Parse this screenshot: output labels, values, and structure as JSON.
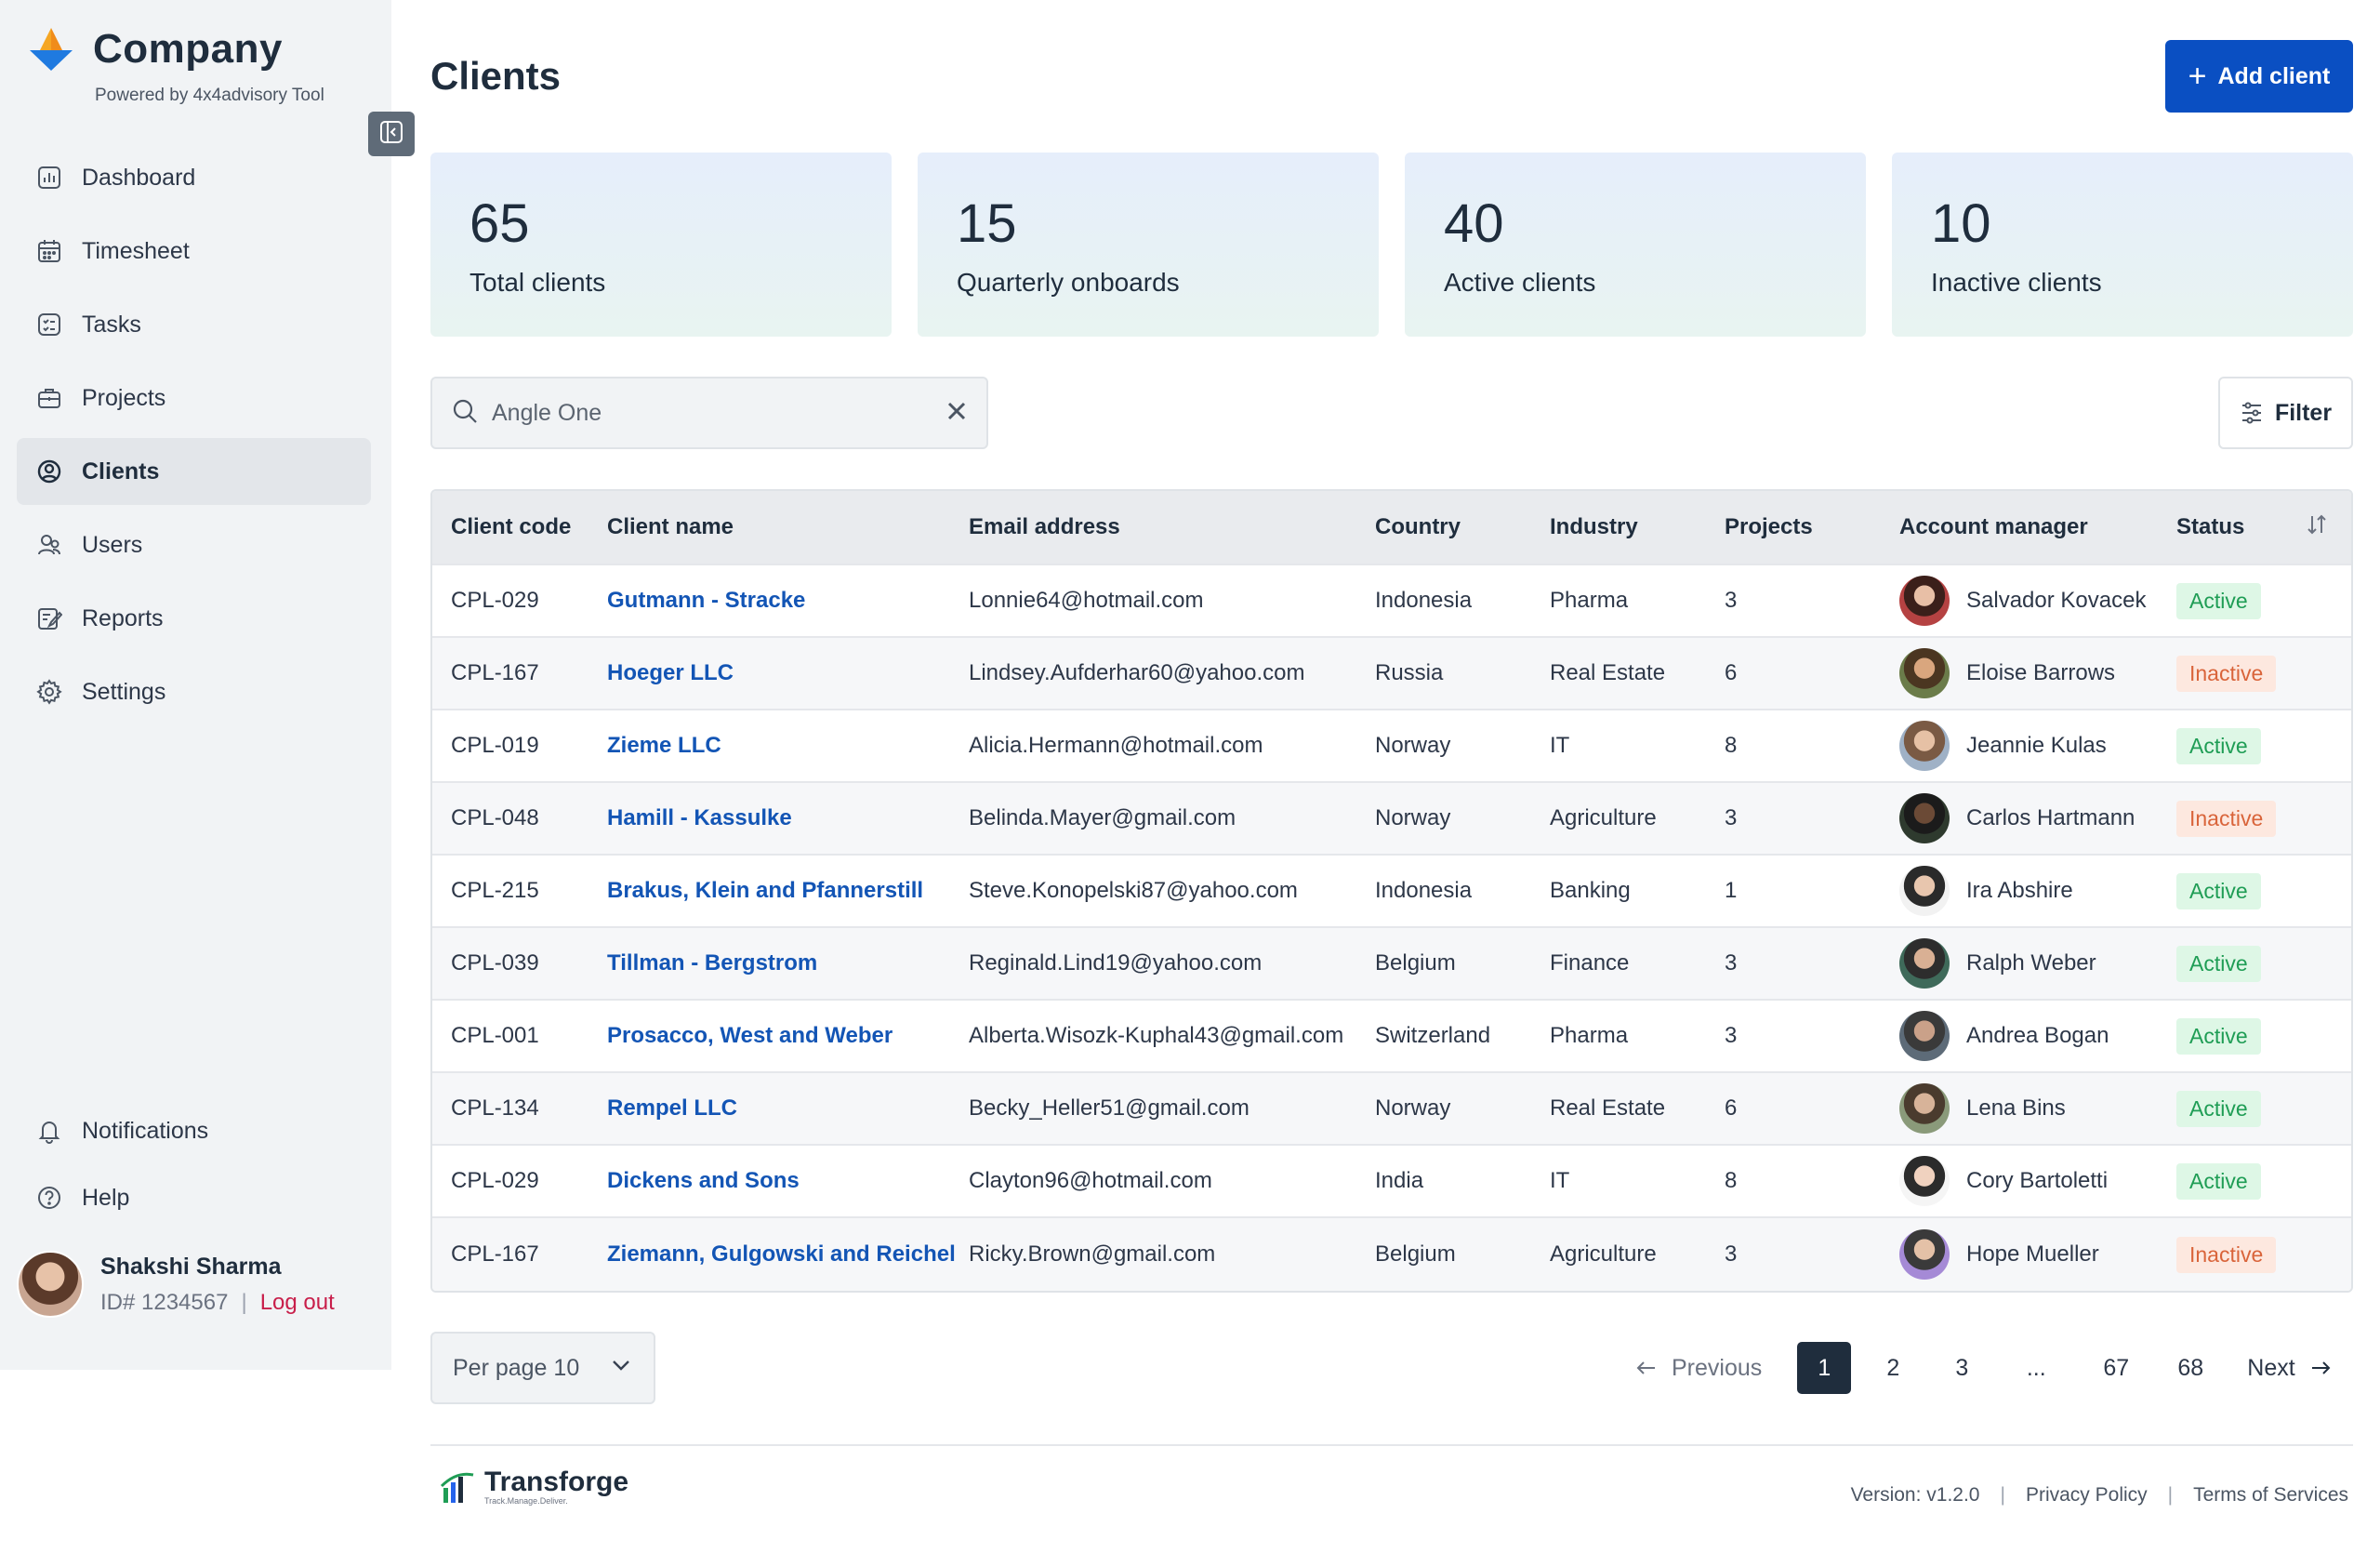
{
  "brand": {
    "name": "Company",
    "powered_by": "Powered by 4x4advisory Tool"
  },
  "sidebar": {
    "items": [
      {
        "label": "Dashboard",
        "icon": "dashboard-icon"
      },
      {
        "label": "Timesheet",
        "icon": "calendar-icon"
      },
      {
        "label": "Tasks",
        "icon": "tasks-icon"
      },
      {
        "label": "Projects",
        "icon": "briefcase-icon"
      },
      {
        "label": "Clients",
        "icon": "user-circle-icon",
        "active": true
      },
      {
        "label": "Users",
        "icon": "users-icon"
      },
      {
        "label": "Reports",
        "icon": "reports-icon"
      },
      {
        "label": "Settings",
        "icon": "gear-icon"
      }
    ],
    "bottom": [
      {
        "label": "Notifications",
        "icon": "bell-icon"
      },
      {
        "label": "Help",
        "icon": "help-icon"
      }
    ],
    "profile": {
      "name": "Shakshi Sharma",
      "id": "ID# 1234567",
      "logout": "Log out"
    }
  },
  "header": {
    "title": "Clients",
    "add_button": "Add client"
  },
  "stats": [
    {
      "value": "65",
      "label": "Total clients"
    },
    {
      "value": "15",
      "label": "Quarterly onboards"
    },
    {
      "value": "40",
      "label": "Active clients"
    },
    {
      "value": "10",
      "label": "Inactive clients"
    }
  ],
  "search": {
    "value": "Angle One"
  },
  "filter": {
    "label": "Filter"
  },
  "table": {
    "columns": [
      "Client code",
      "Client name",
      "Email address",
      "Country",
      "Industry",
      "Projects",
      "Account manager",
      "Status"
    ],
    "rows": [
      {
        "code": "CPL-029",
        "name": "Gutmann - Stracke",
        "email": "Lonnie64@hotmail.com",
        "country": "Indonesia",
        "industry": "Pharma",
        "projects": "3",
        "manager": "Salvador Kovacek",
        "status": "Active"
      },
      {
        "code": "CPL-167",
        "name": "Hoeger LLC",
        "email": "Lindsey.Aufderhar60@yahoo.com",
        "country": "Russia",
        "industry": "Real Estate",
        "projects": "6",
        "manager": "Eloise Barrows",
        "status": "Inactive"
      },
      {
        "code": "CPL-019",
        "name": "Zieme LLC",
        "email": "Alicia.Hermann@hotmail.com",
        "country": "Norway",
        "industry": "IT",
        "projects": "8",
        "manager": "Jeannie Kulas",
        "status": "Active"
      },
      {
        "code": "CPL-048",
        "name": "Hamill - Kassulke",
        "email": "Belinda.Mayer@gmail.com",
        "country": "Norway",
        "industry": "Agriculture",
        "projects": "3",
        "manager": "Carlos Hartmann",
        "status": "Inactive"
      },
      {
        "code": "CPL-215",
        "name": "Brakus, Klein and Pfannerstill",
        "email": "Steve.Konopelski87@yahoo.com",
        "country": "Indonesia",
        "industry": "Banking",
        "projects": "1",
        "manager": "Ira Abshire",
        "status": "Active"
      },
      {
        "code": "CPL-039",
        "name": "Tillman - Bergstrom",
        "email": "Reginald.Lind19@yahoo.com",
        "country": "Belgium",
        "industry": "Finance",
        "projects": "3",
        "manager": "Ralph Weber",
        "status": "Active"
      },
      {
        "code": "CPL-001",
        "name": "Prosacco, West and Weber",
        "email": "Alberta.Wisozk-Kuphal43@gmail.com",
        "country": "Switzerland",
        "industry": "Pharma",
        "projects": "3",
        "manager": "Andrea Bogan",
        "status": "Active"
      },
      {
        "code": "CPL-134",
        "name": "Rempel LLC",
        "email": "Becky_Heller51@gmail.com",
        "country": "Norway",
        "industry": "Real Estate",
        "projects": "6",
        "manager": "Lena Bins",
        "status": "Active"
      },
      {
        "code": "CPL-029",
        "name": "Dickens and Sons",
        "email": "Clayton96@hotmail.com",
        "country": "India",
        "industry": "IT",
        "projects": "8",
        "manager": "Cory Bartoletti",
        "status": "Active"
      },
      {
        "code": "CPL-167",
        "name": "Ziemann, Gulgowski and Reichel",
        "email": "Ricky.Brown@gmail.com",
        "country": "Belgium",
        "industry": "Agriculture",
        "projects": "3",
        "manager": "Hope Mueller",
        "status": "Inactive"
      }
    ]
  },
  "pagination": {
    "per_page": "Per page 10",
    "previous": "Previous",
    "pages": [
      "1",
      "2",
      "3",
      "...",
      "67",
      "68"
    ],
    "current": "1",
    "next": "Next"
  },
  "footer": {
    "logo_word": "Transforge",
    "logo_tag": "Track.Manage.Deliver.",
    "version": "Version: v1.2.0",
    "privacy": "Privacy Policy",
    "terms": "Terms of Services"
  },
  "colors": {
    "primary": "#0a4fc2",
    "link": "#1355b5",
    "active_badge": "#1f9d55",
    "inactive_badge": "#d9643a",
    "logout": "#c81e4a"
  }
}
